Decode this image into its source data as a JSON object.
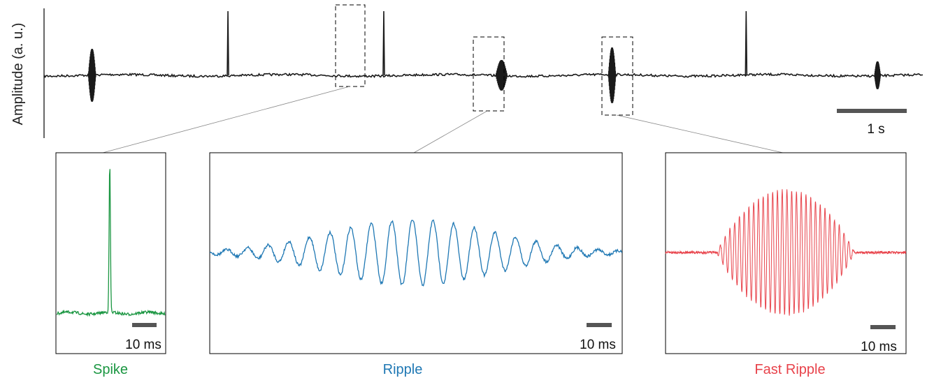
{
  "overview": {
    "ylabel": "Amplitude (a. u.)",
    "scalebar": {
      "label": "1 s",
      "duration_s": 1
    },
    "events": [
      {
        "type": "ripple",
        "t": 0.53
      },
      {
        "type": "spike",
        "t": 2.03
      },
      {
        "type": "spike",
        "t": 3.75
      },
      {
        "type": "ripple",
        "t": 5.05
      },
      {
        "type": "fast_ripple",
        "t": 6.27
      },
      {
        "type": "spike",
        "t": 7.75
      },
      {
        "type": "ripple",
        "t": 9.2
      }
    ],
    "highlighted_events": [
      "spike",
      "ripple",
      "fast_ripple"
    ]
  },
  "panels": {
    "spike": {
      "label": "Spike",
      "color": "#1a9641",
      "scalebar": "10 ms"
    },
    "ripple": {
      "label": "Ripple",
      "color": "#1f78b4",
      "scalebar": "10 ms"
    },
    "fast_ripple": {
      "label": "Fast Ripple",
      "color": "#e8434b",
      "scalebar": "10 ms"
    }
  },
  "chart_data": [
    {
      "type": "line",
      "title": "",
      "ylabel": "Amplitude (a. u.)",
      "xlabel": "",
      "duration_s": 9.7,
      "events_s": [
        0.53,
        2.03,
        3.75,
        5.05,
        6.27,
        7.75,
        9.2
      ],
      "scalebar": "1 s"
    },
    {
      "type": "line",
      "series": [
        {
          "name": "Spike",
          "duration_ms": 50,
          "event_at_ms": 25
        }
      ],
      "scalebar": "10 ms"
    },
    {
      "type": "line",
      "series": [
        {
          "name": "Ripple",
          "duration_ms": 190,
          "cycles": 18
        }
      ],
      "scalebar": "10 ms"
    },
    {
      "type": "line",
      "series": [
        {
          "name": "Fast Ripple",
          "duration_ms": 115,
          "cycles": 30
        }
      ],
      "scalebar": "10 ms"
    }
  ]
}
